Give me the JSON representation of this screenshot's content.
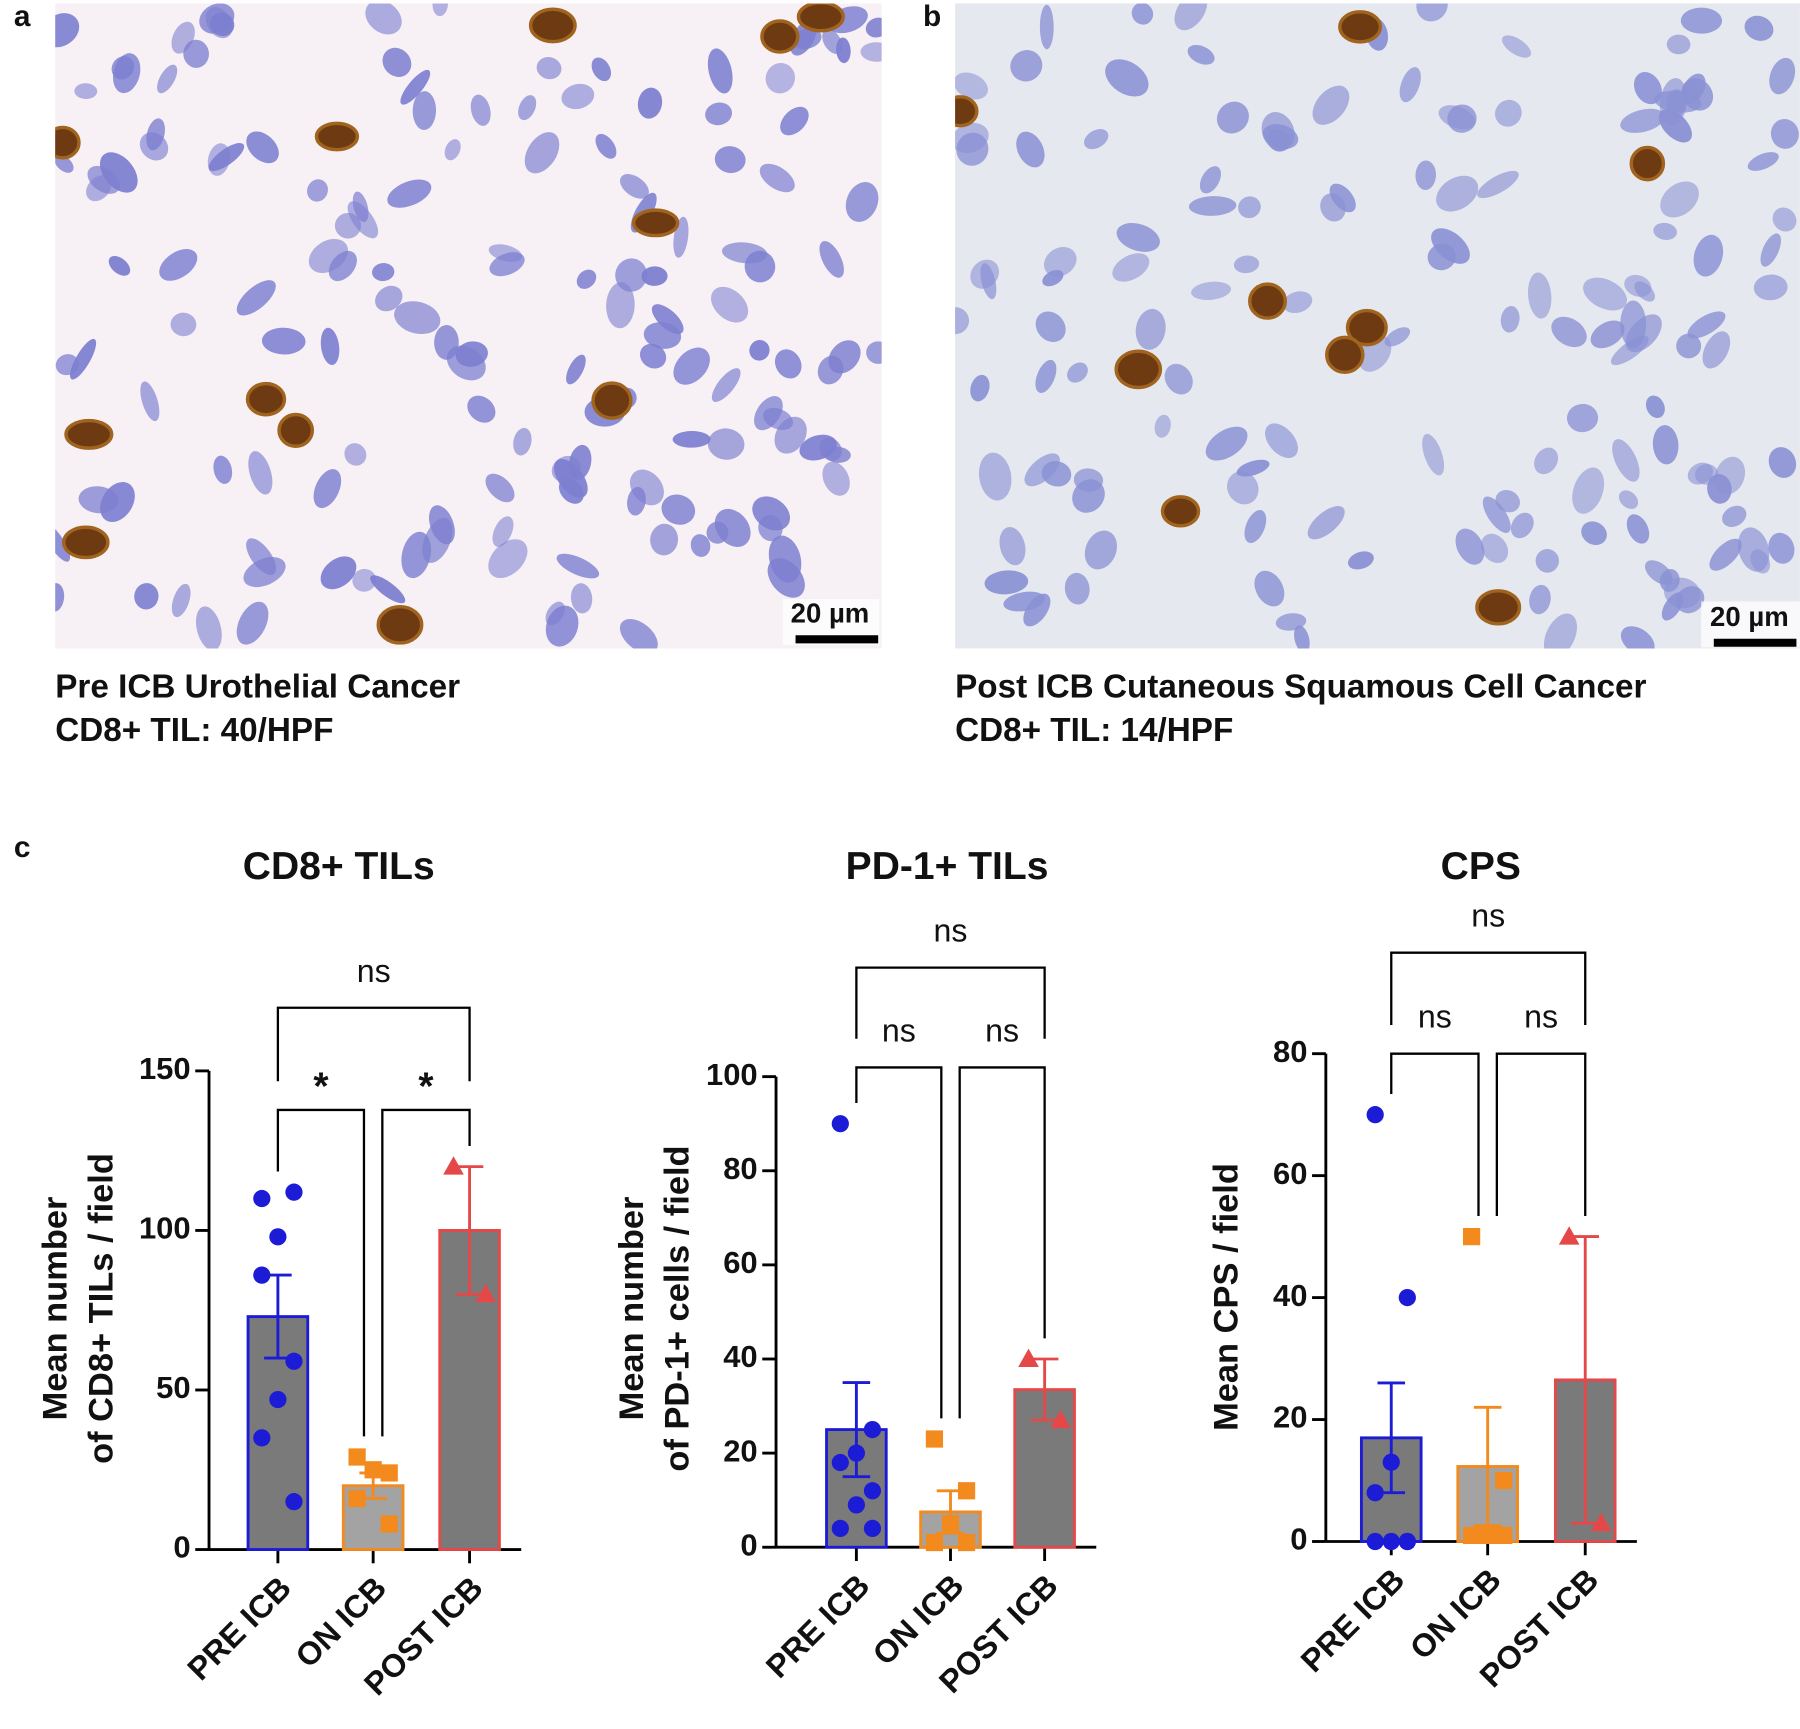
{
  "panel_labels": [
    "a",
    "b",
    "c"
  ],
  "images": [
    {
      "scale_bar": "20 µm",
      "caption": [
        "Pre ICB Urothelial Cancer",
        "CD8+ TIL: 40/HPF"
      ]
    },
    {
      "scale_bar": "20 µm",
      "caption": [
        "Post ICB Cutaneous Squamous Cell Cancer",
        "CD8+ TIL: 14/HPF"
      ]
    }
  ],
  "chart_data": [
    {
      "type": "bar",
      "title": "CD8+ TILs",
      "y_label": [
        "Mean number",
        "of CD8+ TILs / field"
      ],
      "categories": [
        "PRE ICB",
        "ON ICB",
        "POST ICB"
      ],
      "values": [
        73,
        20,
        100
      ],
      "errors": [
        13,
        4,
        20
      ],
      "colors": [
        "#1c1cd6",
        "#f28a1e",
        "#e54848"
      ],
      "bar_fills": [
        "#7a7a7a",
        "#a3a3a3",
        "#7a7a7a"
      ],
      "markers": [
        "circle",
        "square",
        "triangle"
      ],
      "points": [
        [
          110,
          112,
          98,
          86,
          59,
          47,
          35,
          15
        ],
        [
          29,
          24,
          25,
          16,
          8
        ],
        [
          120,
          80
        ]
      ],
      "ylim": [
        0,
        150
      ],
      "yticks": [
        0,
        50,
        100,
        150
      ],
      "comparisons": [
        {
          "between": [
            "PRE ICB",
            "ON ICB"
          ],
          "label": "*"
        },
        {
          "between": [
            "ON ICB",
            "POST ICB"
          ],
          "label": "*"
        },
        {
          "between": [
            "PRE ICB",
            "POST ICB"
          ],
          "label": "ns"
        }
      ]
    },
    {
      "type": "bar",
      "title": "PD-1+ TILs",
      "y_label": [
        "Mean number",
        "of PD-1+ cells / field"
      ],
      "categories": [
        "PRE ICB",
        "ON ICB",
        "POST ICB"
      ],
      "values": [
        25,
        7.5,
        33.5
      ],
      "errors": [
        10,
        4.5,
        6.5
      ],
      "colors": [
        "#1c1cd6",
        "#f28a1e",
        "#e54848"
      ],
      "bar_fills": [
        "#7a7a7a",
        "#a3a3a3",
        "#7a7a7a"
      ],
      "markers": [
        "circle",
        "square",
        "triangle"
      ],
      "points": [
        [
          90,
          25,
          20,
          18,
          12,
          9,
          4,
          4
        ],
        [
          23,
          12,
          5,
          1,
          1
        ],
        [
          40,
          27
        ]
      ],
      "ylim": [
        0,
        100
      ],
      "yticks": [
        0,
        20,
        40,
        60,
        80,
        100
      ],
      "comparisons": [
        {
          "between": [
            "PRE ICB",
            "ON ICB"
          ],
          "label": "ns"
        },
        {
          "between": [
            "ON ICB",
            "POST ICB"
          ],
          "label": "ns"
        },
        {
          "between": [
            "PRE ICB",
            "POST ICB"
          ],
          "label": "ns"
        }
      ]
    },
    {
      "type": "bar",
      "title": "CPS",
      "y_label": [
        "Mean CPS / field"
      ],
      "categories": [
        "PRE ICB",
        "ON ICB",
        "POST ICB"
      ],
      "values": [
        17,
        12.3,
        26.5
      ],
      "errors": [
        9,
        9.7,
        23.5
      ],
      "colors": [
        "#1c1cd6",
        "#f28a1e",
        "#e54848"
      ],
      "bar_fills": [
        "#7a7a7a",
        "#a3a3a3",
        "#7a7a7a"
      ],
      "markers": [
        "circle",
        "square",
        "triangle"
      ],
      "points": [
        [
          70,
          40,
          13,
          8,
          0,
          0,
          0,
          0
        ],
        [
          50,
          10,
          1,
          1,
          1
        ],
        [
          50,
          3
        ]
      ],
      "ylim": [
        0,
        80
      ],
      "yticks": [
        0,
        20,
        40,
        60,
        80
      ],
      "comparisons": [
        {
          "between": [
            "PRE ICB",
            "ON ICB"
          ],
          "label": "ns"
        },
        {
          "between": [
            "ON ICB",
            "POST ICB"
          ],
          "label": "ns"
        },
        {
          "between": [
            "PRE ICB",
            "POST ICB"
          ],
          "label": "ns"
        }
      ]
    }
  ]
}
